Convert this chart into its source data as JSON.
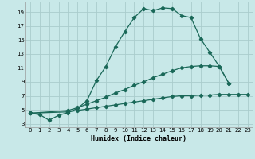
{
  "xlabel": "Humidex (Indice chaleur)",
  "bg_color": "#c8e8e8",
  "grid_color": "#aacccc",
  "line_color": "#1a6858",
  "xlim": [
    -0.5,
    23.5
  ],
  "ylim": [
    2.5,
    20.5
  ],
  "xticks": [
    0,
    1,
    2,
    3,
    4,
    5,
    6,
    7,
    8,
    9,
    10,
    11,
    12,
    13,
    14,
    15,
    16,
    17,
    18,
    19,
    20,
    21,
    22,
    23
  ],
  "yticks": [
    3,
    5,
    7,
    9,
    11,
    13,
    15,
    17,
    19
  ],
  "curve1_x": [
    0,
    1,
    2,
    3,
    4,
    5,
    6,
    7,
    8,
    9,
    10,
    11,
    12,
    13,
    14,
    15,
    16,
    17,
    18,
    19,
    20,
    21
  ],
  "curve1_y": [
    4.5,
    4.3,
    3.5,
    4.2,
    4.6,
    5.2,
    6.3,
    9.2,
    11.2,
    14.0,
    16.2,
    18.2,
    19.5,
    19.2,
    19.6,
    19.5,
    18.5,
    18.2,
    15.2,
    13.2,
    11.2,
    8.8
  ],
  "curve2_x": [
    0,
    4,
    5,
    6,
    7,
    8,
    9,
    10,
    11,
    12,
    13,
    14,
    15,
    16,
    17,
    18,
    19,
    20,
    21
  ],
  "curve2_y": [
    4.5,
    4.9,
    5.3,
    5.8,
    6.3,
    6.8,
    7.4,
    7.9,
    8.5,
    9.0,
    9.6,
    10.1,
    10.6,
    11.0,
    11.2,
    11.3,
    11.3,
    11.2,
    8.8
  ],
  "curve3_x": [
    0,
    4,
    5,
    6,
    7,
    8,
    9,
    10,
    11,
    12,
    13,
    14,
    15,
    16,
    17,
    18,
    19,
    20,
    21,
    22,
    23
  ],
  "curve3_y": [
    4.5,
    4.7,
    4.9,
    5.1,
    5.3,
    5.5,
    5.7,
    5.9,
    6.1,
    6.3,
    6.5,
    6.7,
    6.9,
    7.0,
    7.0,
    7.1,
    7.1,
    7.2,
    7.2,
    7.2,
    7.2
  ]
}
